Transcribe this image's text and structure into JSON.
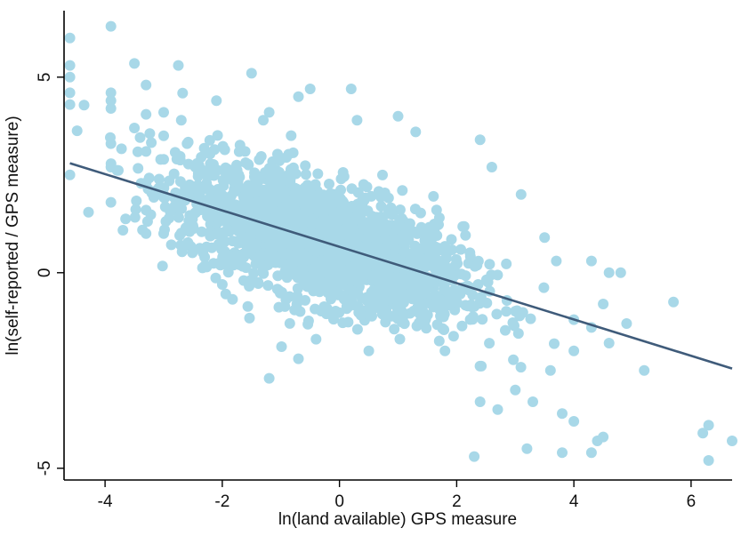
{
  "chart_data": {
    "type": "scatter",
    "title": "",
    "xlabel": "ln(land available) GPS measure",
    "ylabel": "ln(self-reported / GPS measure)",
    "xlim": [
      -4.7,
      6.7
    ],
    "ylim": [
      -5.3,
      6.7
    ],
    "xticks": [
      -4,
      -2,
      0,
      2,
      4,
      6
    ],
    "yticks": [
      -5,
      0,
      5
    ],
    "grid": false,
    "colors": {
      "points": "#a8d8e8",
      "fit_line": "#3f5b7a"
    },
    "fit_line": {
      "x": [
        -4.6,
        6.7
      ],
      "y": [
        2.8,
        -2.45
      ]
    },
    "cloud": {
      "n": 2200,
      "x_mean": -0.3,
      "x_sd": 1.2,
      "slope": -0.47,
      "intercept": 0.66,
      "y_resid_sd": 0.75
    },
    "points": [
      [
        -4.6,
        6.0
      ],
      [
        -4.6,
        5.3
      ],
      [
        -4.6,
        5.0
      ],
      [
        -4.6,
        4.6
      ],
      [
        -4.6,
        4.3
      ],
      [
        -4.6,
        2.5
      ],
      [
        -3.9,
        6.3
      ],
      [
        -3.9,
        4.6
      ],
      [
        -3.9,
        4.4
      ],
      [
        -3.9,
        4.2
      ],
      [
        -3.9,
        3.3
      ],
      [
        -3.9,
        2.7
      ],
      [
        -3.9,
        1.8
      ],
      [
        -3.5,
        5.35
      ],
      [
        -3.5,
        3.7
      ],
      [
        -3.3,
        4.8
      ],
      [
        -3.3,
        4.05
      ],
      [
        -3.3,
        3.1
      ],
      [
        -3.3,
        2.3
      ],
      [
        -3.3,
        1.6
      ],
      [
        -3.3,
        1.0
      ],
      [
        -3.0,
        4.1
      ],
      [
        -3.0,
        3.5
      ],
      [
        -3.0,
        2.9
      ],
      [
        -3.0,
        2.0
      ],
      [
        -3.0,
        1.0
      ],
      [
        -2.75,
        5.3
      ],
      [
        -2.7,
        3.9
      ],
      [
        -2.6,
        3.3
      ],
      [
        -2.5,
        1.2
      ],
      [
        -2.3,
        0.4
      ],
      [
        -2.1,
        4.4
      ],
      [
        -2.0,
        -0.3
      ],
      [
        -1.5,
        5.1
      ],
      [
        -1.3,
        3.9
      ],
      [
        -1.2,
        4.1
      ],
      [
        -1.2,
        -2.7
      ],
      [
        -0.7,
        4.5
      ],
      [
        -0.7,
        -2.2
      ],
      [
        -0.5,
        4.7
      ],
      [
        -0.4,
        -1.7
      ],
      [
        0.2,
        4.7
      ],
      [
        0.3,
        3.9
      ],
      [
        0.5,
        -2.0
      ],
      [
        1.0,
        4.0
      ],
      [
        1.3,
        3.6
      ],
      [
        1.8,
        -2.0
      ],
      [
        2.4,
        -3.3
      ],
      [
        2.3,
        -4.7
      ],
      [
        3.2,
        -4.5
      ],
      [
        3.3,
        -3.3
      ],
      [
        3.8,
        -4.6
      ],
      [
        3.8,
        -3.6
      ],
      [
        3.1,
        2.0
      ],
      [
        3.5,
        0.9
      ],
      [
        3.7,
        0.3
      ],
      [
        4.3,
        0.3
      ],
      [
        4.6,
        0.0
      ],
      [
        4.8,
        0.0
      ],
      [
        4.5,
        -0.8
      ],
      [
        4.9,
        -1.3
      ],
      [
        5.2,
        -2.5
      ],
      [
        5.7,
        -0.75
      ],
      [
        6.2,
        -4.1
      ],
      [
        6.3,
        -4.8
      ],
      [
        6.3,
        -3.9
      ],
      [
        6.7,
        -4.3
      ],
      [
        4.4,
        -4.3
      ],
      [
        4.5,
        -4.2
      ],
      [
        4.3,
        -4.6
      ],
      [
        2.7,
        -3.5
      ],
      [
        3.0,
        -3.0
      ],
      [
        4.0,
        -3.8
      ],
      [
        2.6,
        2.7
      ],
      [
        2.4,
        3.4
      ],
      [
        4.0,
        -2.0
      ],
      [
        4.3,
        -1.4
      ],
      [
        4.6,
        -1.8
      ],
      [
        4.0,
        -1.2
      ],
      [
        3.6,
        -2.5
      ]
    ]
  }
}
